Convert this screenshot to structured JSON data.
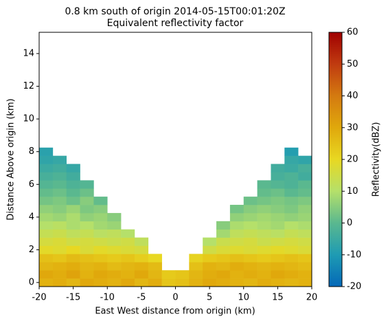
{
  "chart_data": {
    "type": "heatmap",
    "title": "0.8 km south of origin 2014-05-15T00:01:20Z",
    "subtitle": "Equivalent reflectivity factor",
    "x_label": "East West distance from origin (km)",
    "y_label": "Distance Above origin (km)",
    "colorbar_label": "Reflectivity(dBZ)",
    "xlim": [
      -20,
      20
    ],
    "xticks": [
      -20,
      -15,
      -10,
      -5,
      0,
      5,
      10,
      15,
      20
    ],
    "ylim": [
      -0.25,
      15.3
    ],
    "yticks": [
      0,
      2,
      4,
      6,
      8,
      10,
      12,
      14
    ],
    "clim": [
      -20,
      60
    ],
    "cticks": [
      -20,
      -10,
      0,
      10,
      20,
      30,
      40,
      50,
      60
    ],
    "colormap": [
      "#0468b8",
      "#1e9bb3",
      "#5ab88f",
      "#b5e06a",
      "#e8d822",
      "#e0a80c",
      "#d47a10",
      "#c03b10",
      "#a00000"
    ],
    "x_edges": [
      -20,
      -18,
      -16,
      -14,
      -12,
      -10,
      -8,
      -6,
      -4,
      -2,
      0,
      2,
      4,
      6,
      8,
      10,
      12,
      14,
      16,
      18,
      20
    ],
    "y_edges": [
      -0.25,
      0.25,
      0.75,
      1.25,
      1.75,
      2.25,
      2.75,
      3.25,
      3.75,
      4.25,
      4.75,
      5.25,
      5.75,
      6.25,
      6.75,
      7.25,
      7.75,
      8.25
    ],
    "values": [
      [
        28,
        29,
        27,
        30,
        29,
        28,
        30,
        27,
        29,
        24,
        25,
        28,
        30,
        29,
        28,
        27,
        29,
        28,
        27,
        28
      ],
      [
        30,
        29,
        31,
        28,
        30,
        29,
        28,
        30,
        27,
        23,
        24,
        27,
        29,
        30,
        28,
        29,
        28,
        30,
        29,
        28
      ],
      [
        27,
        28,
        29,
        27,
        28,
        26,
        27,
        28,
        26,
        null,
        null,
        25,
        28,
        27,
        29,
        28,
        27,
        28,
        27,
        26
      ],
      [
        25,
        24,
        26,
        25,
        24,
        23,
        24,
        22,
        20,
        null,
        null,
        21,
        23,
        24,
        25,
        24,
        23,
        24,
        25,
        24
      ],
      [
        19,
        18,
        20,
        17,
        19,
        18,
        17,
        16,
        null,
        null,
        null,
        null,
        15,
        17,
        18,
        17,
        18,
        19,
        18,
        17
      ],
      [
        16,
        17,
        15,
        16,
        15,
        14,
        15,
        12,
        null,
        null,
        null,
        null,
        10,
        14,
        15,
        16,
        14,
        15,
        16,
        15
      ],
      [
        13,
        14,
        12,
        13,
        11,
        12,
        10,
        null,
        null,
        null,
        null,
        null,
        null,
        8,
        12,
        13,
        12,
        11,
        13,
        12
      ],
      [
        10,
        11,
        9,
        10,
        8,
        7,
        null,
        null,
        null,
        null,
        null,
        null,
        null,
        5,
        9,
        10,
        9,
        8,
        10,
        9
      ],
      [
        8,
        7,
        9,
        6,
        7,
        5,
        null,
        null,
        null,
        null,
        null,
        null,
        null,
        null,
        6,
        7,
        8,
        7,
        6,
        7
      ],
      [
        6,
        5,
        7,
        4,
        5,
        null,
        null,
        null,
        null,
        null,
        null,
        null,
        null,
        null,
        3,
        5,
        6,
        5,
        4,
        6
      ],
      [
        3,
        4,
        2,
        5,
        1,
        null,
        null,
        null,
        null,
        null,
        null,
        null,
        null,
        null,
        null,
        2,
        3,
        4,
        3,
        4
      ],
      [
        1,
        2,
        0,
        2,
        null,
        null,
        null,
        null,
        null,
        null,
        null,
        null,
        null,
        null,
        null,
        null,
        1,
        2,
        0,
        1
      ],
      [
        -1,
        0,
        -2,
        -1,
        null,
        null,
        null,
        null,
        null,
        null,
        null,
        null,
        null,
        null,
        null,
        null,
        0,
        -1,
        -2,
        0
      ],
      [
        -3,
        -2,
        -4,
        null,
        null,
        null,
        null,
        null,
        null,
        null,
        null,
        null,
        null,
        null,
        null,
        null,
        null,
        -3,
        -2,
        -4
      ],
      [
        -5,
        -4,
        -6,
        null,
        null,
        null,
        null,
        null,
        null,
        null,
        null,
        null,
        null,
        null,
        null,
        null,
        null,
        -4,
        -5,
        -3
      ],
      [
        -7,
        -6,
        null,
        null,
        null,
        null,
        null,
        null,
        null,
        null,
        null,
        null,
        null,
        null,
        null,
        null,
        null,
        null,
        -6,
        -7
      ],
      [
        -8,
        null,
        null,
        null,
        null,
        null,
        null,
        null,
        null,
        null,
        null,
        null,
        null,
        null,
        null,
        null,
        null,
        null,
        -9,
        null
      ]
    ]
  }
}
